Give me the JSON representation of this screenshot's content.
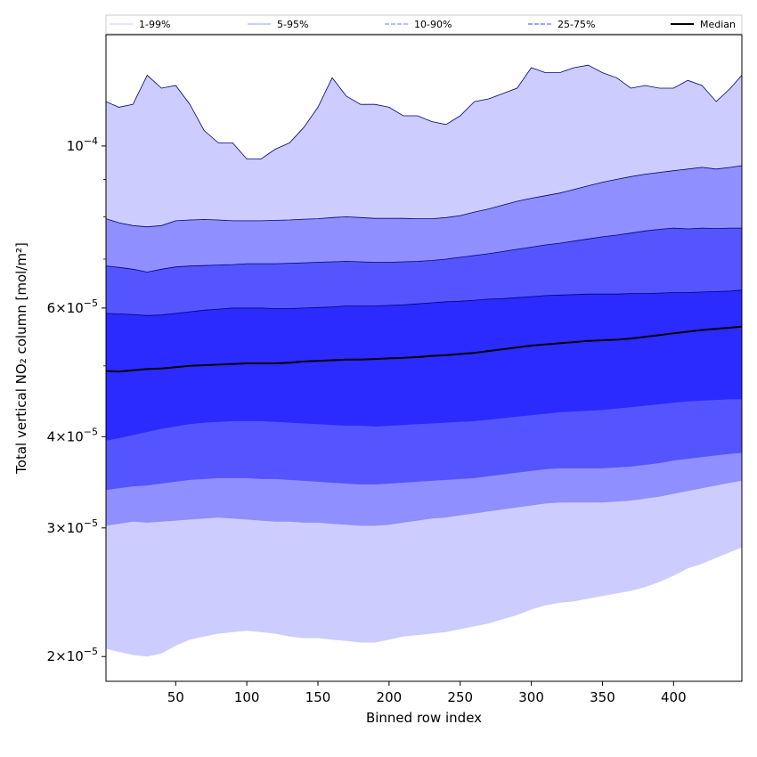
{
  "chart_data": {
    "type": "area",
    "title": "",
    "xlabel": "Binned row index",
    "ylabel": "Total vertical NO₂ column [mol/m²]",
    "y_scale": "log",
    "xlim": [
      1,
      448
    ],
    "ylim": [
      1.85e-05,
      0.000142
    ],
    "grid": false,
    "legend_position": "top",
    "x_ticks": [
      {
        "value": 50,
        "label": "50"
      },
      {
        "value": 100,
        "label": "100"
      },
      {
        "value": 150,
        "label": "150"
      },
      {
        "value": 200,
        "label": "200"
      },
      {
        "value": 250,
        "label": "250"
      },
      {
        "value": 300,
        "label": "300"
      },
      {
        "value": 350,
        "label": "350"
      },
      {
        "value": 400,
        "label": "400"
      }
    ],
    "y_ticks": [
      {
        "value": 2e-05,
        "mantissa": "2",
        "exponent": "−5"
      },
      {
        "value": 3e-05,
        "mantissa": "3",
        "exponent": "−5"
      },
      {
        "value": 4e-05,
        "mantissa": "4",
        "exponent": "−5"
      },
      {
        "value": 6e-05,
        "mantissa": "6",
        "exponent": "−5"
      },
      {
        "value": 0.0001,
        "mantissa": "",
        "exponent": "−4"
      }
    ],
    "y_minor_ticks": [
      5e-05,
      7e-05,
      8e-05,
      9e-05
    ],
    "x": [
      1,
      10,
      20,
      30,
      40,
      50,
      60,
      70,
      80,
      90,
      100,
      110,
      120,
      130,
      140,
      150,
      160,
      170,
      180,
      190,
      200,
      210,
      220,
      230,
      240,
      250,
      260,
      270,
      280,
      290,
      300,
      310,
      320,
      330,
      340,
      350,
      360,
      370,
      380,
      390,
      400,
      410,
      420,
      430,
      440,
      448
    ],
    "bands": [
      {
        "name": "1-99%",
        "color": "#ccccff",
        "lower": [
          2.05e-05,
          2.03e-05,
          2.01e-05,
          2e-05,
          2.02e-05,
          2.07e-05,
          2.11e-05,
          2.13e-05,
          2.15e-05,
          2.16e-05,
          2.17e-05,
          2.16e-05,
          2.15e-05,
          2.13e-05,
          2.12e-05,
          2.12e-05,
          2.11e-05,
          2.1e-05,
          2.09e-05,
          2.09e-05,
          2.11e-05,
          2.13e-05,
          2.14e-05,
          2.15e-05,
          2.16e-05,
          2.18e-05,
          2.2e-05,
          2.22e-05,
          2.25e-05,
          2.28e-05,
          2.32e-05,
          2.35e-05,
          2.37e-05,
          2.38e-05,
          2.4e-05,
          2.42e-05,
          2.44e-05,
          2.46e-05,
          2.49e-05,
          2.53e-05,
          2.58e-05,
          2.64e-05,
          2.68e-05,
          2.73e-05,
          2.78e-05,
          2.82e-05
        ],
        "upper": [
          0.000115,
          0.000113,
          0.000114,
          0.000125,
          0.00012,
          0.000121,
          0.000114,
          0.000105,
          0.000101,
          0.000101,
          9.6e-05,
          9.6e-05,
          9.9e-05,
          0.000101,
          0.000106,
          0.000113,
          0.000124,
          0.000117,
          0.000114,
          0.000114,
          0.000113,
          0.00011,
          0.00011,
          0.000108,
          0.000107,
          0.00011,
          0.000115,
          0.000116,
          0.000118,
          0.00012,
          0.000128,
          0.000126,
          0.000126,
          0.000128,
          0.000129,
          0.000126,
          0.000124,
          0.00012,
          0.000121,
          0.00012,
          0.00012,
          0.000123,
          0.000121,
          0.000115,
          0.00012,
          0.000125
        ]
      },
      {
        "name": "5-95%",
        "color": "#8f8fff",
        "lower": [
          3.02e-05,
          3.04e-05,
          3.06e-05,
          3.05e-05,
          3.06e-05,
          3.07e-05,
          3.08e-05,
          3.09e-05,
          3.1e-05,
          3.09e-05,
          3.08e-05,
          3.07e-05,
          3.06e-05,
          3.06e-05,
          3.05e-05,
          3.05e-05,
          3.04e-05,
          3.03e-05,
          3.02e-05,
          3.02e-05,
          3.03e-05,
          3.05e-05,
          3.07e-05,
          3.09e-05,
          3.1e-05,
          3.12e-05,
          3.14e-05,
          3.16e-05,
          3.18e-05,
          3.2e-05,
          3.22e-05,
          3.24e-05,
          3.25e-05,
          3.25e-05,
          3.25e-05,
          3.25e-05,
          3.26e-05,
          3.27e-05,
          3.29e-05,
          3.31e-05,
          3.34e-05,
          3.37e-05,
          3.4e-05,
          3.43e-05,
          3.46e-05,
          3.48e-05
        ],
        "upper": [
          7.95e-05,
          7.85e-05,
          7.78e-05,
          7.75e-05,
          7.78e-05,
          7.9e-05,
          7.92e-05,
          7.93e-05,
          7.92e-05,
          7.9e-05,
          7.9e-05,
          7.9e-05,
          7.91e-05,
          7.92e-05,
          7.94e-05,
          7.95e-05,
          7.98e-05,
          8e-05,
          7.98e-05,
          7.96e-05,
          7.96e-05,
          7.96e-05,
          7.95e-05,
          7.95e-05,
          7.98e-05,
          8.03e-05,
          8.12e-05,
          8.2e-05,
          8.3e-05,
          8.4e-05,
          8.48e-05,
          8.55e-05,
          8.62e-05,
          8.72e-05,
          8.82e-05,
          8.92e-05,
          9e-05,
          9.08e-05,
          9.15e-05,
          9.2e-05,
          9.25e-05,
          9.3e-05,
          9.35e-05,
          9.3e-05,
          9.35e-05,
          9.4e-05
        ]
      },
      {
        "name": "10-90%",
        "color": "#5555ff",
        "lower": [
          3.38e-05,
          3.4e-05,
          3.42e-05,
          3.43e-05,
          3.45e-05,
          3.47e-05,
          3.49e-05,
          3.5e-05,
          3.51e-05,
          3.51e-05,
          3.51e-05,
          3.5e-05,
          3.5e-05,
          3.49e-05,
          3.48e-05,
          3.47e-05,
          3.46e-05,
          3.45e-05,
          3.44e-05,
          3.44e-05,
          3.45e-05,
          3.46e-05,
          3.47e-05,
          3.48e-05,
          3.49e-05,
          3.5e-05,
          3.51e-05,
          3.53e-05,
          3.55e-05,
          3.57e-05,
          3.59e-05,
          3.61e-05,
          3.62e-05,
          3.62e-05,
          3.62e-05,
          3.62e-05,
          3.63e-05,
          3.64e-05,
          3.66e-05,
          3.68e-05,
          3.71e-05,
          3.73e-05,
          3.75e-05,
          3.77e-05,
          3.79e-05,
          3.8e-05
        ],
        "upper": [
          6.85e-05,
          6.82e-05,
          6.78e-05,
          6.72e-05,
          6.78e-05,
          6.83e-05,
          6.85e-05,
          6.86e-05,
          6.87e-05,
          6.88e-05,
          6.9e-05,
          6.9e-05,
          6.9e-05,
          6.91e-05,
          6.92e-05,
          6.93e-05,
          6.94e-05,
          6.95e-05,
          6.94e-05,
          6.93e-05,
          6.93e-05,
          6.94e-05,
          6.95e-05,
          6.97e-05,
          7e-05,
          7.04e-05,
          7.08e-05,
          7.12e-05,
          7.17e-05,
          7.22e-05,
          7.27e-05,
          7.32e-05,
          7.36e-05,
          7.41e-05,
          7.46e-05,
          7.51e-05,
          7.55e-05,
          7.6e-05,
          7.65e-05,
          7.69e-05,
          7.72e-05,
          7.7e-05,
          7.72e-05,
          7.71e-05,
          7.72e-05,
          7.72e-05
        ]
      },
      {
        "name": "25-75%",
        "color": "#2b2bff",
        "lower": [
          3.95e-05,
          3.98e-05,
          4.02e-05,
          4.06e-05,
          4.1e-05,
          4.13e-05,
          4.16e-05,
          4.18e-05,
          4.19e-05,
          4.2e-05,
          4.2e-05,
          4.2e-05,
          4.19e-05,
          4.18e-05,
          4.17e-05,
          4.16e-05,
          4.15e-05,
          4.14e-05,
          4.14e-05,
          4.13e-05,
          4.14e-05,
          4.15e-05,
          4.16e-05,
          4.17e-05,
          4.18e-05,
          4.19e-05,
          4.2e-05,
          4.22e-05,
          4.24e-05,
          4.26e-05,
          4.28e-05,
          4.3e-05,
          4.32e-05,
          4.33e-05,
          4.34e-05,
          4.35e-05,
          4.37e-05,
          4.39e-05,
          4.41e-05,
          4.43e-05,
          4.45e-05,
          4.47e-05,
          4.48e-05,
          4.49e-05,
          4.5e-05,
          4.5e-05
        ],
        "upper": [
          5.9e-05,
          5.89e-05,
          5.88e-05,
          5.86e-05,
          5.87e-05,
          5.9e-05,
          5.93e-05,
          5.96e-05,
          5.98e-05,
          6e-05,
          6e-05,
          6e-05,
          5.99e-05,
          5.99e-05,
          6e-05,
          6.01e-05,
          6.02e-05,
          6.04e-05,
          6.04e-05,
          6.04e-05,
          6.05e-05,
          6.06e-05,
          6.08e-05,
          6.1e-05,
          6.12e-05,
          6.13e-05,
          6.15e-05,
          6.17e-05,
          6.18e-05,
          6.2e-05,
          6.22e-05,
          6.24e-05,
          6.25e-05,
          6.26e-05,
          6.27e-05,
          6.27e-05,
          6.27e-05,
          6.28e-05,
          6.28e-05,
          6.29e-05,
          6.3e-05,
          6.3e-05,
          6.31e-05,
          6.32e-05,
          6.33e-05,
          6.35e-05
        ]
      }
    ],
    "median": {
      "name": "Median",
      "color": "#000000",
      "values": [
        4.92e-05,
        4.91e-05,
        4.93e-05,
        4.95e-05,
        4.96e-05,
        4.98e-05,
        5e-05,
        5.01e-05,
        5.02e-05,
        5.03e-05,
        5.04e-05,
        5.04e-05,
        5.04e-05,
        5.05e-05,
        5.07e-05,
        5.08e-05,
        5.09e-05,
        5.1e-05,
        5.1e-05,
        5.11e-05,
        5.12e-05,
        5.13e-05,
        5.14e-05,
        5.16e-05,
        5.17e-05,
        5.19e-05,
        5.21e-05,
        5.24e-05,
        5.27e-05,
        5.3e-05,
        5.33e-05,
        5.35e-05,
        5.37e-05,
        5.39e-05,
        5.41e-05,
        5.42e-05,
        5.43e-05,
        5.45e-05,
        5.48e-05,
        5.51e-05,
        5.54e-05,
        5.57e-05,
        5.6e-05,
        5.62e-05,
        5.64e-05,
        5.66e-05
      ]
    },
    "legend": [
      {
        "label": "1-99%",
        "color": "#ccccff",
        "dash": "solid"
      },
      {
        "label": "5-95%",
        "color": "#9999ff",
        "dash": "solid"
      },
      {
        "label": "10-90%",
        "color": "#7777ff",
        "dash": "dashed"
      },
      {
        "label": "25-75%",
        "color": "#4444ff",
        "dash": "dashed"
      },
      {
        "label": "Median",
        "color": "#000000",
        "dash": "solid"
      }
    ]
  }
}
